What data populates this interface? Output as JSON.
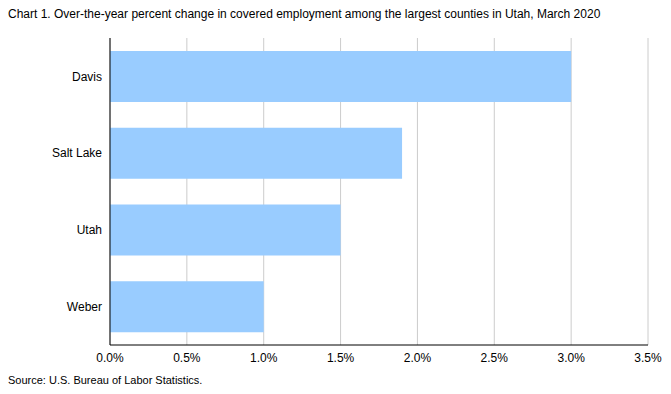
{
  "chart_data": {
    "type": "bar",
    "orientation": "horizontal",
    "title": "Chart 1. Over-the-year percent change in covered employment among the largest counties in Utah, March 2020",
    "source": "Source: U.S. Bureau of Labor Statistics.",
    "categories": [
      "Davis",
      "Salt Lake",
      "Utah",
      "Weber"
    ],
    "values": [
      3.0,
      1.9,
      1.5,
      1.0
    ],
    "color": "#99ccff",
    "xlim": [
      0,
      3.5
    ],
    "xticks": [
      {
        "value": 0,
        "label": "0.0%"
      },
      {
        "value": 0.5,
        "label": "0.5%"
      },
      {
        "value": 1,
        "label": "1.0%"
      },
      {
        "value": 1.5,
        "label": "1.5%"
      },
      {
        "value": 2,
        "label": "2.0%"
      },
      {
        "value": 2.5,
        "label": "2.5%"
      },
      {
        "value": 3,
        "label": "3.0%"
      },
      {
        "value": 3.5,
        "label": "3.5%"
      }
    ],
    "grid": true
  }
}
